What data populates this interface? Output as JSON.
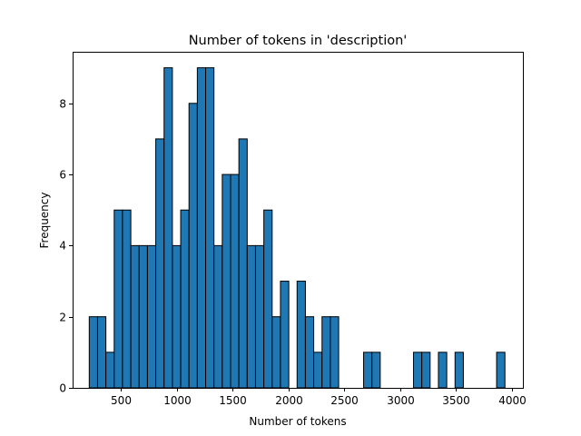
{
  "chart_data": {
    "type": "bar",
    "title": "Number of tokens in 'description'",
    "xlabel": "Number of tokens",
    "ylabel": "Frequency",
    "xlim": [
      65,
      4100
    ],
    "ylim": [
      0,
      9.45
    ],
    "xticks": [
      500,
      1000,
      1500,
      2000,
      2500,
      3000,
      3500,
      4000
    ],
    "yticks": [
      0,
      2,
      4,
      6,
      8
    ],
    "grid": false,
    "legend": "none",
    "bar_color": "#1f77b4",
    "edge_color": "#000000",
    "bin_start": 214,
    "bin_width": 74.5,
    "counts": [
      2,
      2,
      1,
      5,
      5,
      4,
      4,
      4,
      7,
      9,
      4,
      5,
      8,
      9,
      9,
      4,
      6,
      6,
      7,
      4,
      4,
      5,
      2,
      3,
      0,
      3,
      2,
      1,
      2,
      2,
      0,
      0,
      0,
      1,
      1,
      0,
      0,
      0,
      0,
      1,
      1,
      0,
      1,
      0,
      1,
      0,
      0,
      0,
      0,
      1
    ]
  }
}
